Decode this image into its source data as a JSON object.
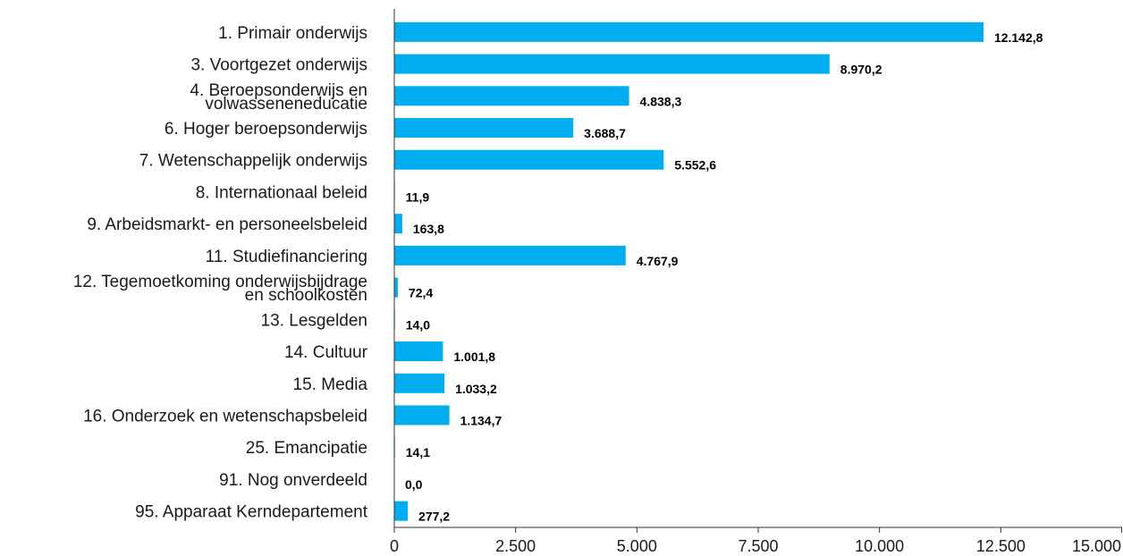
{
  "chart_data": {
    "type": "bar",
    "orientation": "horizontal",
    "categories": [
      [
        "1. Primair onderwijs"
      ],
      [
        "3. Voortgezet onderwijs"
      ],
      [
        "4. Beroepsonderwijs en",
        "volwasseneneducatie"
      ],
      [
        "6. Hoger beroepsonderwijs"
      ],
      [
        "7. Wetenschappelijk onderwijs"
      ],
      [
        "8. Internationaal beleid"
      ],
      [
        "9. Arbeidsmarkt- en personeelsbeleid"
      ],
      [
        "11. Studiefinanciering"
      ],
      [
        "12. Tegemoetkoming onderwijsbijdrage",
        "en schoolkosten"
      ],
      [
        "13. Lesgelden"
      ],
      [
        "14. Cultuur"
      ],
      [
        "15. Media"
      ],
      [
        "16. Onderzoek en wetenschapsbeleid"
      ],
      [
        "25. Emancipatie"
      ],
      [
        "91. Nog onverdeeld"
      ],
      [
        "95. Apparaat Kerndepartement"
      ]
    ],
    "values": [
      12142.8,
      8970.2,
      4838.3,
      3688.7,
      5552.6,
      11.9,
      163.8,
      4767.9,
      72.4,
      14.0,
      1001.8,
      1033.2,
      1134.7,
      14.1,
      0.0,
      277.2
    ],
    "value_labels": [
      "12.142,8",
      "8.970,2",
      "4.838,3",
      "3.688,7",
      "5.552,6",
      "11,9",
      "163,8",
      "4.767,9",
      "72,4",
      "14,0",
      "1.001,8",
      "1.033,2",
      "1.134,7",
      "14,1",
      "0,0",
      "277,2"
    ],
    "xlim": [
      0,
      15000
    ],
    "ticks": [
      0,
      2500,
      5000,
      7500,
      10000,
      12500,
      15000
    ],
    "tick_labels": [
      "0",
      "2.500",
      "5.000",
      "7.500",
      "10.000",
      "12.500",
      "15.000"
    ],
    "grid": false,
    "legend": "none",
    "bar_color": "#00AEEF"
  }
}
